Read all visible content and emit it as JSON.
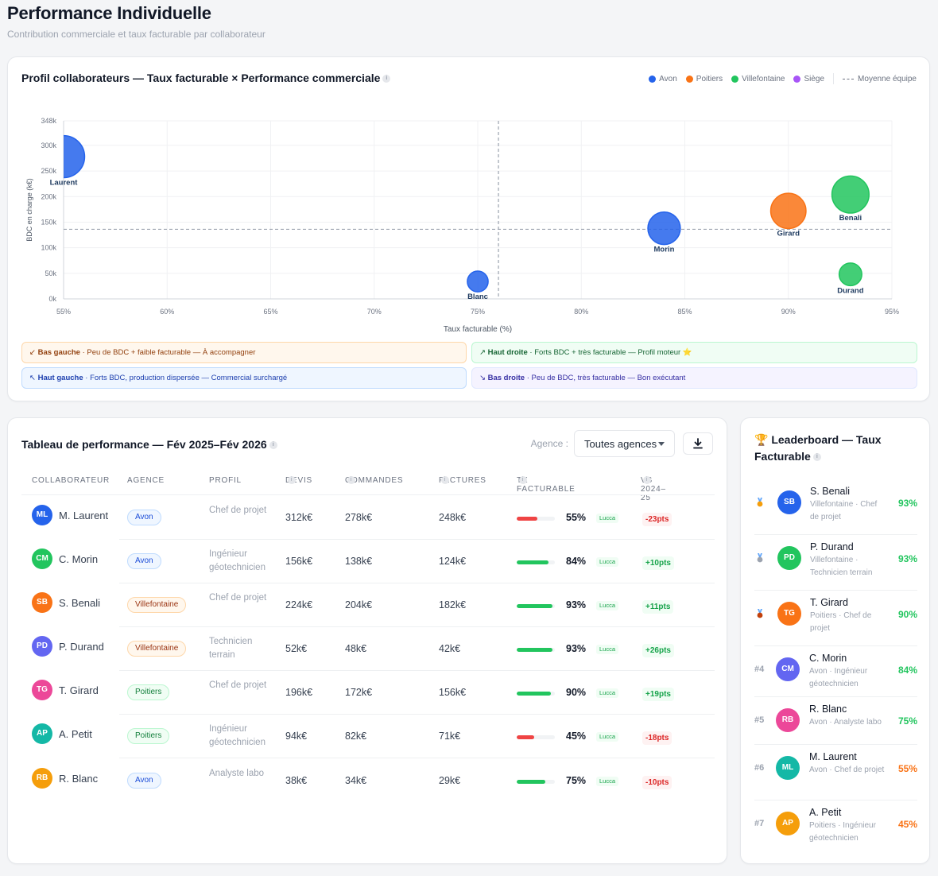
{
  "page": {
    "title": "Performance Individuelle",
    "subtitle": "Contribution commerciale et taux facturable par collaborateur"
  },
  "chart_card": {
    "title": "Profil collaborateurs — Taux facturable × Performance commerciale",
    "legend": [
      {
        "label": "Avon",
        "color": "#2563eb"
      },
      {
        "label": "Poitiers",
        "color": "#f97316"
      },
      {
        "label": "Villefontaine",
        "color": "#22c55e"
      },
      {
        "label": "Siège",
        "color": "#a855f7"
      }
    ],
    "legend_average": "Moyenne équipe",
    "quadrants": {
      "bottom_left": {
        "icon": "↙",
        "name": "Bas gauche",
        "text": " · Peu de BDC + faible facturable — À accompagner"
      },
      "top_right": {
        "icon": "↗",
        "name": "Haut droite",
        "text": " · Forts BDC + très facturable — Profil moteur ⭐"
      },
      "top_left": {
        "icon": "↖",
        "name": "Haut gauche",
        "text": " · Forts BDC, production dispersée — Commercial surchargé"
      },
      "bottom_right": {
        "icon": "↘",
        "name": "Bas droite",
        "text": " · Peu de BDC, très facturable — Bon exécutant"
      }
    }
  },
  "chart_data": {
    "type": "scatter",
    "xlabel": "Taux facturable (%)",
    "ylabel": "BDC en charge (k€)",
    "xlim": [
      55,
      95
    ],
    "ylim": [
      0,
      348
    ],
    "x_ticks": [
      55,
      60,
      65,
      70,
      75,
      80,
      85,
      90,
      95
    ],
    "x_tick_labels": [
      "55%",
      "60%",
      "65%",
      "70%",
      "75%",
      "80%",
      "85%",
      "90%",
      "95%"
    ],
    "y_ticks": [
      0,
      50,
      100,
      150,
      200,
      250,
      300,
      348
    ],
    "y_tick_labels": [
      "0k",
      "50k",
      "100k",
      "150k",
      "200k",
      "250k",
      "300k",
      "348k"
    ],
    "grid": true,
    "average": {
      "x": 76,
      "y": 136
    },
    "points": [
      {
        "label": "Laurent",
        "x": 55,
        "y": 278,
        "size": 312,
        "agency": "Avon",
        "color": "#2563eb"
      },
      {
        "label": "Morin",
        "x": 84,
        "y": 138,
        "size": 156,
        "agency": "Avon",
        "color": "#2563eb"
      },
      {
        "label": "Benali",
        "x": 93,
        "y": 204,
        "size": 224,
        "agency": "Villefontaine",
        "color": "#22c55e"
      },
      {
        "label": "Durand",
        "x": 93,
        "y": 48,
        "size": 52,
        "agency": "Villefontaine",
        "color": "#22c55e"
      },
      {
        "label": "Girard",
        "x": 90,
        "y": 172,
        "size": 196,
        "agency": "Poitiers",
        "color": "#f97316"
      },
      {
        "label": "Blanc",
        "x": 75,
        "y": 34,
        "size": 38,
        "agency": "Avon",
        "color": "#2563eb"
      }
    ]
  },
  "table_card": {
    "title": "Tableau de performance — Fév 2025–Fév 2026",
    "filter_label": "Agence :",
    "filter_value": "Toutes agences",
    "columns": [
      "COLLABORATEUR",
      "AGENCE",
      "PROFIL",
      "DEVIS",
      "COMMANDES",
      "FACTURES",
      "TX FACTURABLE",
      "VS 2024–25"
    ],
    "rows": [
      {
        "initials": "ML",
        "name": "M. Laurent",
        "color": "#2563eb",
        "agency": "Avon",
        "agency_style": "p-av",
        "profile": "Chef de projet",
        "devis": "312k€",
        "commandes": "278k€",
        "factures": "248k€",
        "tx": 55,
        "tx_label": "55%",
        "bar_color": "#ef4444",
        "source": "Lucca",
        "delta": "-23pts",
        "delta_style": "d-neg"
      },
      {
        "initials": "CM",
        "name": "C. Morin",
        "color": "#22c55e",
        "agency": "Avon",
        "agency_style": "p-av",
        "profile": "Ingénieur géotechnicien",
        "devis": "156k€",
        "commandes": "138k€",
        "factures": "124k€",
        "tx": 84,
        "tx_label": "84%",
        "bar_color": "#22c55e",
        "source": "Lucca",
        "delta": "+10pts",
        "delta_style": "d-pos"
      },
      {
        "initials": "SB",
        "name": "S. Benali",
        "color": "#f97316",
        "agency": "Villefontaine",
        "agency_style": "p-vi",
        "profile": "Chef de projet",
        "devis": "224k€",
        "commandes": "204k€",
        "factures": "182k€",
        "tx": 93,
        "tx_label": "93%",
        "bar_color": "#22c55e",
        "source": "Lucca",
        "delta": "+11pts",
        "delta_style": "d-pos"
      },
      {
        "initials": "PD",
        "name": "P. Durand",
        "color": "#6366f1",
        "agency": "Villefontaine",
        "agency_style": "p-vi",
        "profile": "Technicien terrain",
        "devis": "52k€",
        "commandes": "48k€",
        "factures": "42k€",
        "tx": 93,
        "tx_label": "93%",
        "bar_color": "#22c55e",
        "source": "Lucca",
        "delta": "+26pts",
        "delta_style": "d-pos"
      },
      {
        "initials": "TG",
        "name": "T. Girard",
        "color": "#ec4899",
        "agency": "Poitiers",
        "agency_style": "p-po",
        "profile": "Chef de projet",
        "devis": "196k€",
        "commandes": "172k€",
        "factures": "156k€",
        "tx": 90,
        "tx_label": "90%",
        "bar_color": "#22c55e",
        "source": "Lucca",
        "delta": "+19pts",
        "delta_style": "d-pos"
      },
      {
        "initials": "AP",
        "name": "A. Petit",
        "color": "#14b8a6",
        "agency": "Poitiers",
        "agency_style": "p-po",
        "profile": "Ingénieur géotechnicien",
        "devis": "94k€",
        "commandes": "82k€",
        "factures": "71k€",
        "tx": 45,
        "tx_label": "45%",
        "bar_color": "#ef4444",
        "source": "Lucca",
        "delta": "-18pts",
        "delta_style": "d-neg"
      },
      {
        "initials": "RB",
        "name": "R. Blanc",
        "color": "#f59e0b",
        "agency": "Avon",
        "agency_style": "p-av",
        "profile": "Analyste labo",
        "devis": "38k€",
        "commandes": "34k€",
        "factures": "29k€",
        "tx": 75,
        "tx_label": "75%",
        "bar_color": "#22c55e",
        "source": "Lucca",
        "delta": "-10pts",
        "delta_style": "d-neg"
      }
    ]
  },
  "leaderboard": {
    "title": "🏆 Leaderboard — Taux Facturable",
    "entries": [
      {
        "rank": "",
        "medal": "gold",
        "initials": "SB",
        "color": "#2563eb",
        "name": "S. Benali",
        "sub": "Villefontaine · Chef de projet",
        "pct": "93%",
        "pct_color": "#22c55e"
      },
      {
        "rank": "",
        "medal": "silver",
        "initials": "PD",
        "color": "#22c55e",
        "name": "P. Durand",
        "sub": "Villefontaine · Technicien terrain",
        "pct": "93%",
        "pct_color": "#22c55e"
      },
      {
        "rank": "",
        "medal": "bronze",
        "initials": "TG",
        "color": "#f97316",
        "name": "T. Girard",
        "sub": "Poitiers · Chef de projet",
        "pct": "90%",
        "pct_color": "#22c55e"
      },
      {
        "rank": "#4",
        "medal": "",
        "initials": "CM",
        "color": "#6366f1",
        "name": "C. Morin",
        "sub": "Avon · Ingénieur géotechnicien",
        "pct": "84%",
        "pct_color": "#22c55e"
      },
      {
        "rank": "#5",
        "medal": "",
        "initials": "RB",
        "color": "#ec4899",
        "name": "R. Blanc",
        "sub": "Avon · Analyste labo",
        "pct": "75%",
        "pct_color": "#22c55e"
      },
      {
        "rank": "#6",
        "medal": "",
        "initials": "ML",
        "color": "#14b8a6",
        "name": "M. Laurent",
        "sub": "Avon · Chef de projet",
        "pct": "55%",
        "pct_color": "#f97316"
      },
      {
        "rank": "#7",
        "medal": "",
        "initials": "AP",
        "color": "#f59e0b",
        "name": "A. Petit",
        "sub": "Poitiers · Ingénieur géotechnicien",
        "pct": "45%",
        "pct_color": "#f97316"
      }
    ]
  }
}
